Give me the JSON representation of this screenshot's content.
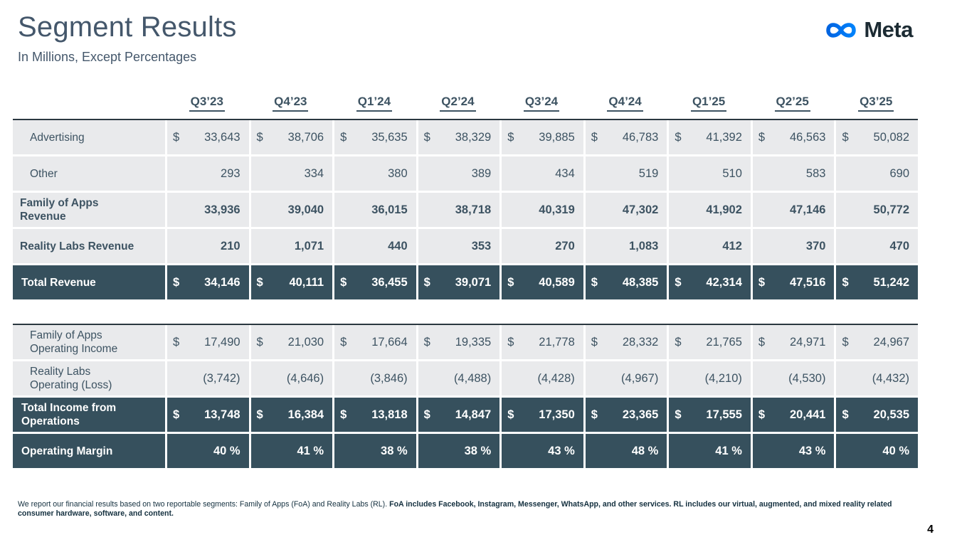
{
  "header": {
    "title": "Segment Results",
    "subtitle": "In Millions, Except Percentages",
    "logo_text": "Meta"
  },
  "colors": {
    "dark_row": "#36505D",
    "row_bg": "#E9EAEC",
    "text": "#3D5362",
    "heading": "#44576B",
    "logo_blue_start": "#0064E0",
    "logo_blue_end": "#0082FB"
  },
  "columns": [
    "Q3’23",
    "Q4’23",
    "Q1’24",
    "Q2’24",
    "Q3’24",
    "Q4’24",
    "Q1’25",
    "Q2’25",
    "Q3’25"
  ],
  "revenue_table": {
    "rows": [
      {
        "label_lines": [
          "Advertising"
        ],
        "style": "plain",
        "indent": true,
        "dollar": true,
        "values": [
          "33,643",
          "38,706",
          "35,635",
          "38,329",
          "39,885",
          "46,783",
          "41,392",
          "46,563",
          "50,082"
        ]
      },
      {
        "label_lines": [
          "Other"
        ],
        "style": "plain",
        "indent": true,
        "dollar": false,
        "values": [
          "293",
          "334",
          "380",
          "389",
          "434",
          "519",
          "510",
          "583",
          "690"
        ]
      },
      {
        "label_lines": [
          "Family of Apps",
          "Revenue"
        ],
        "style": "bold",
        "indent": false,
        "dollar": false,
        "values": [
          "33,936",
          "39,040",
          "36,015",
          "38,718",
          "40,319",
          "47,302",
          "41,902",
          "47,146",
          "50,772"
        ]
      },
      {
        "label_lines": [
          "Reality Labs Revenue"
        ],
        "style": "bold",
        "indent": false,
        "dollar": false,
        "values": [
          "210",
          "1,071",
          "440",
          "353",
          "270",
          "1,083",
          "412",
          "370",
          "470"
        ]
      },
      {
        "label_lines": [
          "Total Revenue"
        ],
        "style": "total",
        "indent": false,
        "dollar": true,
        "values": [
          "34,146",
          "40,111",
          "36,455",
          "39,071",
          "40,589",
          "48,385",
          "42,314",
          "47,516",
          "51,242"
        ]
      }
    ]
  },
  "operating_table": {
    "rows": [
      {
        "label_lines": [
          "Family of Apps",
          "Operating Income"
        ],
        "style": "plain",
        "indent": true,
        "dollar": true,
        "values": [
          "17,490",
          "21,030",
          "17,664",
          "19,335",
          "21,778",
          "28,332",
          "21,765",
          "24,971",
          "24,967"
        ]
      },
      {
        "label_lines": [
          "Reality Labs",
          "Operating (Loss)"
        ],
        "style": "plain",
        "indent": true,
        "dollar": false,
        "values": [
          "(3,742)",
          "(4,646)",
          "(3,846)",
          "(4,488)",
          "(4,428)",
          "(4,967)",
          "(4,210)",
          "(4,530)",
          "(4,432)"
        ]
      },
      {
        "label_lines": [
          "Total Income from",
          "Operations"
        ],
        "style": "total",
        "indent": false,
        "dollar": true,
        "values": [
          "13,748",
          "16,384",
          "13,818",
          "14,847",
          "17,350",
          "23,365",
          "17,555",
          "20,441",
          "20,535"
        ]
      },
      {
        "label_lines": [
          "Operating Margin"
        ],
        "style": "total",
        "indent": false,
        "dollar": false,
        "values": [
          "40 %",
          "41 %",
          "38 %",
          "38 %",
          "43 %",
          "48 %",
          "41 %",
          "43 %",
          "40 %"
        ]
      }
    ]
  },
  "footnote": {
    "normal": "We report our financial results based on two reportable segments: Family of Apps (FoA) and Reality Labs (RL). ",
    "bold": "FoA includes Facebook, Instagram, Messenger, WhatsApp, and other services. RL includes our virtual, augmented, and mixed reality related consumer hardware, software, and content."
  },
  "page_number": "4"
}
